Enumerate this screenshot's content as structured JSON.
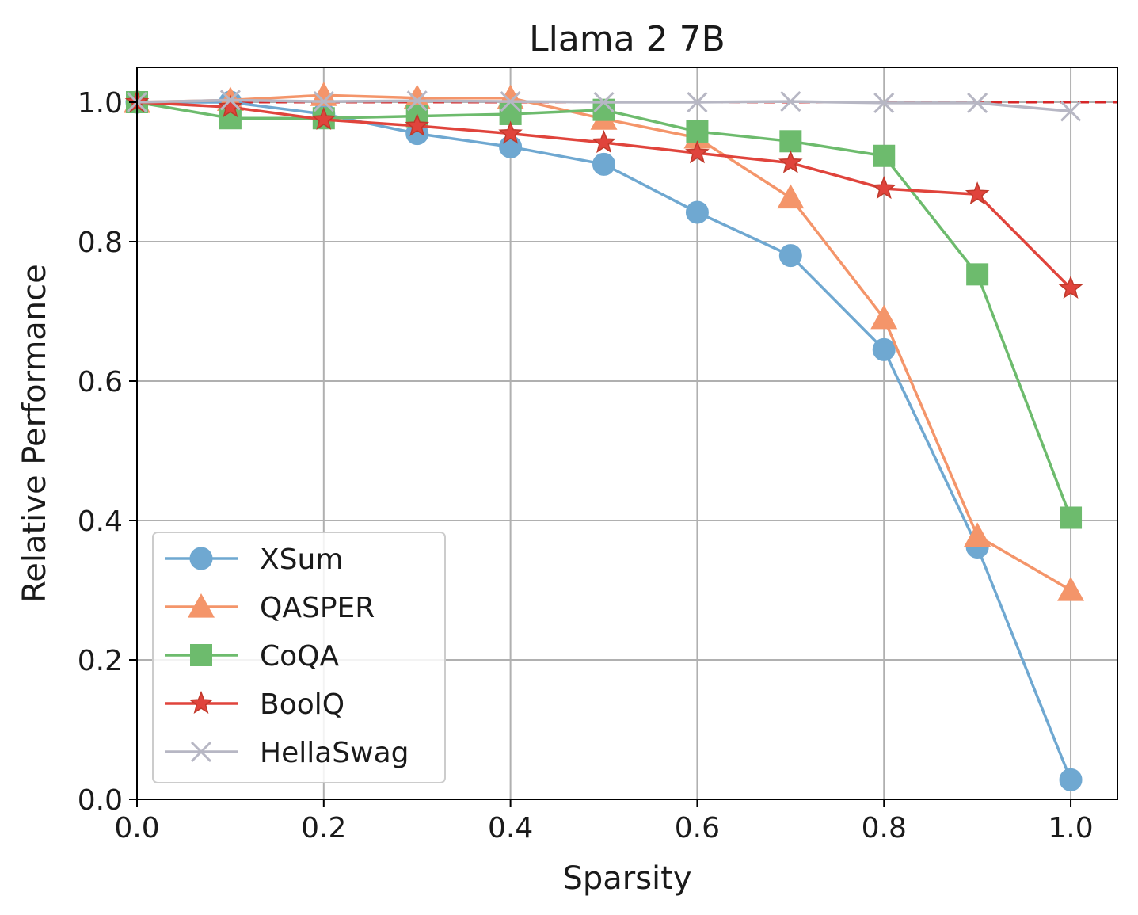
{
  "chart_data": {
    "type": "line",
    "title": "Llama 2 7B",
    "xlabel": "Sparsity",
    "ylabel": "Relative Performance",
    "xlim": [
      0.0,
      1.05
    ],
    "ylim": [
      0.0,
      1.05
    ],
    "x_ticks": [
      0.0,
      0.2,
      0.4,
      0.6,
      0.8,
      1.0
    ],
    "x_tick_labels": [
      "0.0",
      "0.2",
      "0.4",
      "0.6",
      "0.8",
      "1.0"
    ],
    "y_ticks": [
      0.0,
      0.2,
      0.4,
      0.6,
      0.8,
      1.0
    ],
    "y_tick_labels": [
      "0.0",
      "0.2",
      "0.4",
      "0.6",
      "0.8",
      "1.0"
    ],
    "grid": true,
    "legend_position": "lower-left",
    "reference_line": {
      "y": 1.0,
      "style": "dashed",
      "color": "#d62728"
    },
    "x": [
      0.0,
      0.1,
      0.2,
      0.3,
      0.4,
      0.5,
      0.6,
      0.7,
      0.8,
      0.9,
      1.0
    ],
    "series": [
      {
        "name": "XSum",
        "color": "#6fa8d1",
        "marker": "circle",
        "values": [
          1.0,
          1.0,
          0.983,
          0.955,
          0.936,
          0.911,
          0.842,
          0.78,
          0.645,
          0.362,
          0.028
        ]
      },
      {
        "name": "QASPER",
        "color": "#f4956a",
        "marker": "triangle",
        "values": [
          1.0,
          1.003,
          1.01,
          1.006,
          1.006,
          0.976,
          0.949,
          0.863,
          0.69,
          0.378,
          0.3
        ]
      },
      {
        "name": "CoQA",
        "color": "#6dbb6d",
        "marker": "square",
        "values": [
          1.0,
          0.977,
          0.977,
          0.98,
          0.983,
          0.989,
          0.958,
          0.944,
          0.923,
          0.753,
          0.404
        ]
      },
      {
        "name": "BoolQ",
        "color": "#e0443c",
        "marker": "star",
        "values": [
          1.0,
          0.993,
          0.975,
          0.966,
          0.955,
          0.942,
          0.927,
          0.913,
          0.876,
          0.868,
          0.733
        ]
      },
      {
        "name": "HellaSwag",
        "color": "#b7b7c4",
        "marker": "x",
        "values": [
          1.0,
          1.003,
          1.001,
          1.002,
          1.001,
          1.0,
          1.0,
          1.001,
          0.999,
          0.999,
          0.987
        ]
      }
    ]
  }
}
